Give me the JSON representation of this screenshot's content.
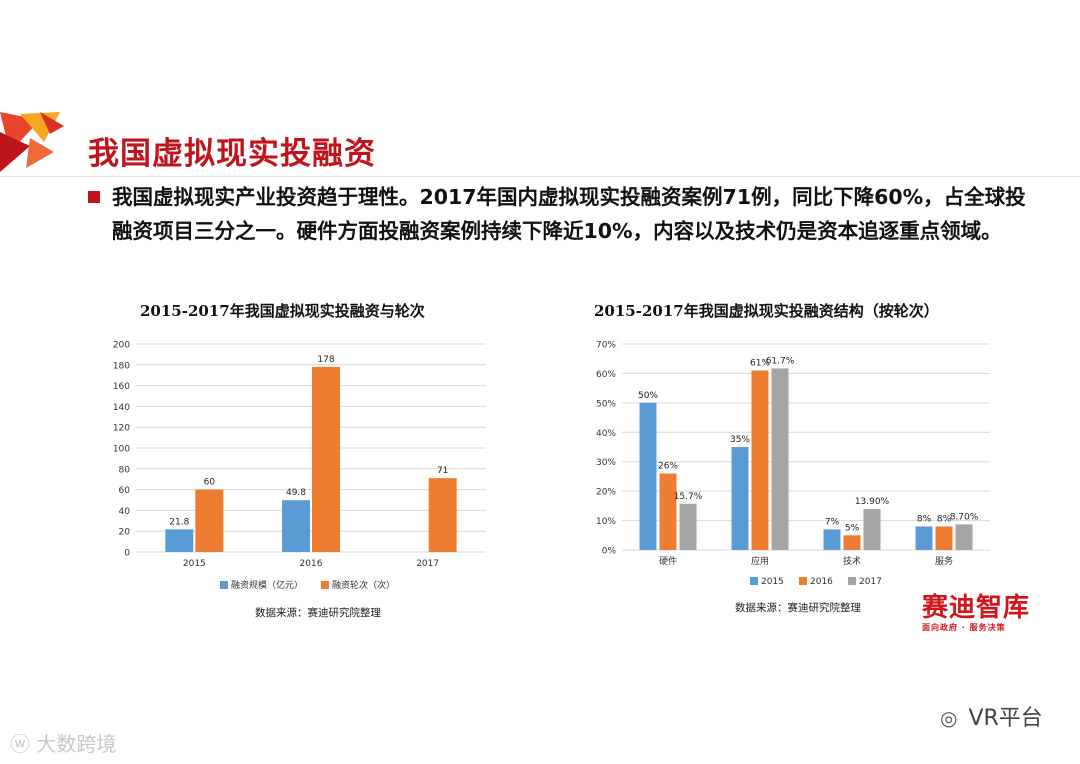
{
  "header": {
    "title": "我国虚拟现实投融资",
    "bullet": "我国虚拟现实产业投资趋于理性。2017年国内虚拟现实投融资案例71例，同比下降60%，占全球投融资项目三分之一。硬件方面投融资案例持续下降近10%，内容以及技术仍是资本追逐重点领域。"
  },
  "colors": {
    "accent": "#c0141c",
    "blue": "#5b9bd5",
    "orange": "#ed7d31",
    "gray": "#a5a5a5"
  },
  "chart_data": [
    {
      "type": "bar",
      "title": "2015-2017年我国虚拟现实投融资与轮次",
      "categories": [
        "2015",
        "2016",
        "2017"
      ],
      "series": [
        {
          "name": "融资规模（亿元）",
          "values": [
            21.8,
            49.8,
            null
          ],
          "labels": [
            "21.8",
            "49.8",
            ""
          ]
        },
        {
          "name": "融资轮次（次）",
          "values": [
            60,
            178,
            71
          ],
          "labels": [
            "60",
            "178",
            "71"
          ]
        }
      ],
      "ylim": [
        0,
        200
      ],
      "yticks": [
        0,
        20,
        40,
        60,
        80,
        100,
        120,
        140,
        160,
        180,
        200
      ],
      "ytick_labels": [
        "0",
        "20",
        "40",
        "60",
        "80",
        "100",
        "120",
        "140",
        "160",
        "180",
        "200"
      ],
      "grid": true,
      "legend": "bottom",
      "source": "数据来源：赛迪研究院整理"
    },
    {
      "type": "bar",
      "title": "2015-2017年我国虚拟现实投融资结构（按轮次）",
      "categories": [
        "硬件",
        "应用",
        "技术",
        "服务"
      ],
      "series": [
        {
          "name": "2015",
          "values": [
            50,
            35,
            7,
            8
          ],
          "labels": [
            "50%",
            "35%",
            "7%",
            "8%"
          ]
        },
        {
          "name": "2016",
          "values": [
            26,
            61,
            5,
            8
          ],
          "labels": [
            "26%",
            "61%",
            "5%",
            "8%"
          ]
        },
        {
          "name": "2017",
          "values": [
            15.7,
            61.7,
            13.9,
            8.7
          ],
          "labels": [
            "15.7%",
            "61.7%",
            "13.90%",
            "8.70%"
          ]
        }
      ],
      "ylim": [
        0,
        70
      ],
      "yticks": [
        0,
        10,
        20,
        30,
        40,
        50,
        60,
        70
      ],
      "ytick_labels": [
        "0%",
        "10%",
        "20%",
        "30%",
        "40%",
        "50%",
        "60%",
        "70%"
      ],
      "grid": true,
      "legend": "bottom",
      "source": "数据来源：赛迪研究院整理"
    }
  ],
  "logo": {
    "main": "赛迪智库",
    "sub": "面向政府 · 服务决策"
  },
  "watermarks": {
    "left": "大数跨境",
    "right": "VR平台"
  }
}
